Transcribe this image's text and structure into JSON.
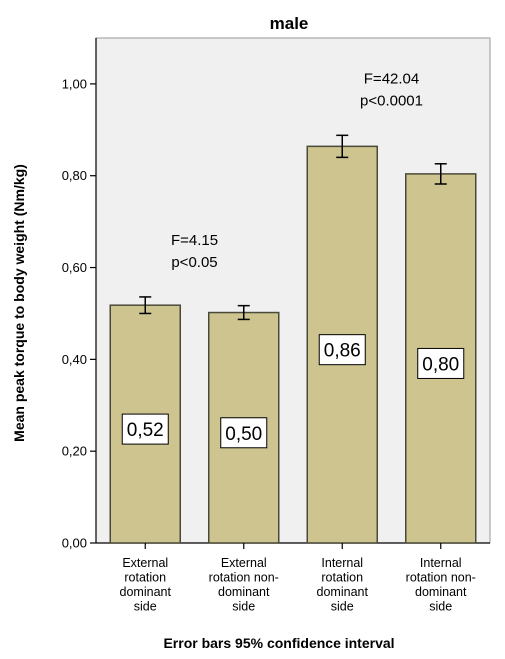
{
  "chart_data": {
    "type": "bar",
    "title": "male",
    "ylabel": "Mean peak torque to body weight (Nm/kg)",
    "xlabel": "",
    "caption": "Error bars 95% confidence interval",
    "ylim": [
      0,
      1.1
    ],
    "yticks": [
      "0,00",
      "0,20",
      "0,40",
      "0,60",
      "0,80",
      "1,00"
    ],
    "ytick_values": [
      0,
      0.2,
      0.4,
      0.6,
      0.8,
      1.0
    ],
    "categories": [
      [
        "External",
        "rotation",
        "dominant",
        "side"
      ],
      [
        "External",
        "rotation non-",
        "dominant",
        "side"
      ],
      [
        "Internal",
        "rotation",
        "dominant",
        "side"
      ],
      [
        "Internal",
        "rotation non-",
        "dominant",
        "side"
      ]
    ],
    "values": [
      0.518,
      0.502,
      0.864,
      0.804
    ],
    "ci_low": [
      0.5,
      0.487,
      0.84,
      0.782
    ],
    "ci_high": [
      0.536,
      0.517,
      0.888,
      0.826
    ],
    "data_labels": [
      "0,52",
      "0,50",
      "0,86",
      "0,80"
    ],
    "grid": false,
    "annotations": [
      {
        "lines": [
          "F=4.15",
          "p<0.05"
        ],
        "group": "external"
      },
      {
        "lines": [
          "F=42.04",
          "p<0.0001"
        ],
        "group": "internal"
      }
    ],
    "colors": {
      "bar_fill": "#cdc48f",
      "bar_stroke": "#4a4a3a",
      "plot_bg": "#f0f0f0",
      "label_box": "#ffffff"
    }
  }
}
